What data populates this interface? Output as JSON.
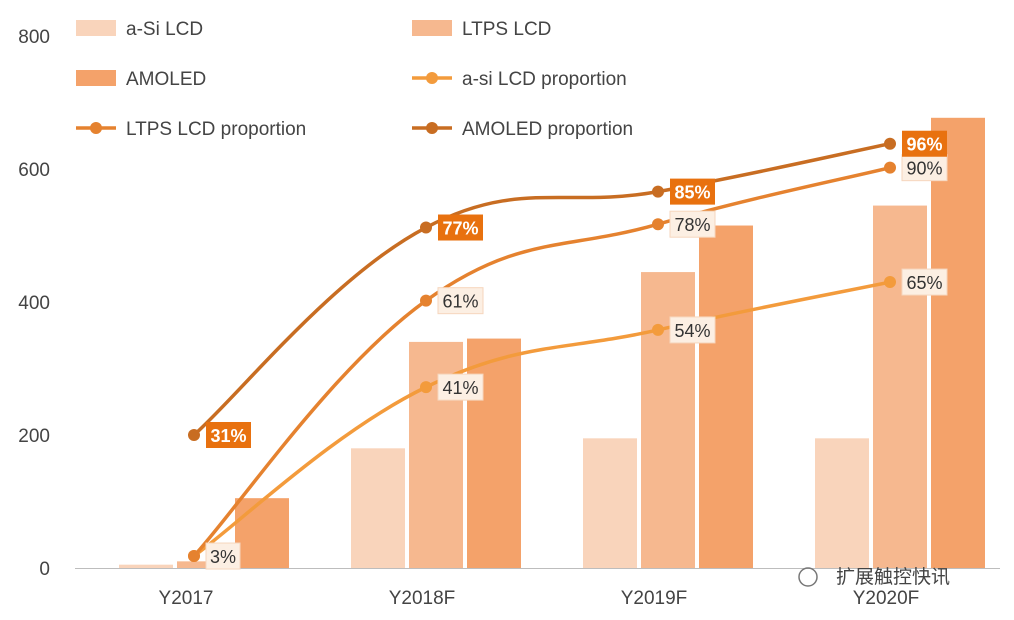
{
  "chart_data": {
    "type": "bar",
    "categories": [
      "Y2017",
      "Y2018F",
      "Y2019F",
      "Y2020F"
    ],
    "yticks": [
      0,
      200,
      400,
      600,
      800
    ],
    "ylim": [
      0,
      800
    ],
    "bar_series": [
      {
        "name": "a-Si LCD",
        "values": [
          5,
          180,
          195,
          195
        ],
        "color": "#f9d4bb"
      },
      {
        "name": "LTPS LCD",
        "values": [
          10,
          340,
          445,
          545
        ],
        "color": "#f6b88f"
      },
      {
        "name": "AMOLED",
        "values": [
          105,
          345,
          515,
          677
        ],
        "color": "#f4a26a"
      }
    ],
    "line_series": [
      {
        "name": "a-si LCD proportion",
        "points": [
          18,
          272,
          358,
          430
        ],
        "labels": [
          "3%",
          "41%",
          "54%",
          "65%"
        ],
        "color": "#f39b3c",
        "label_style": "light"
      },
      {
        "name": "LTPS LCD proportion",
        "points": [
          18,
          402,
          517,
          602
        ],
        "labels": [
          "",
          "61%",
          "78%",
          "90%"
        ],
        "color": "#e5822f",
        "label_style": "light"
      },
      {
        "name": "AMOLED proportion",
        "points": [
          200,
          512,
          566,
          638
        ],
        "labels": [
          "31%",
          "77%",
          "85%",
          "96%"
        ],
        "color": "#c86d22",
        "label_style": "dark"
      }
    ],
    "watermark": "扩展触控快讯"
  }
}
